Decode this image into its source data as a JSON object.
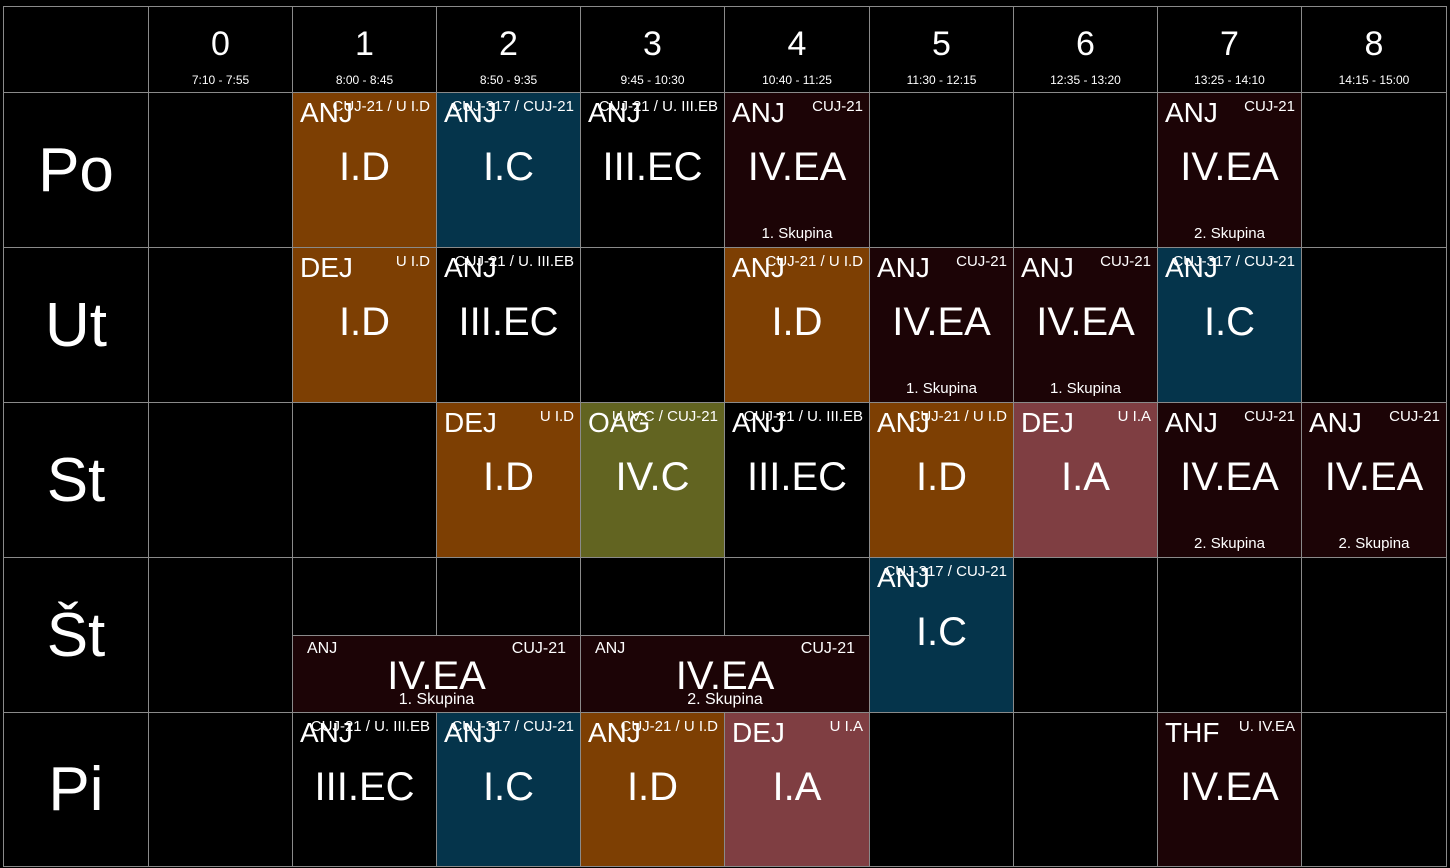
{
  "colors": {
    "background": "#000000",
    "grid_line": "#8a8a8a",
    "class_I.D": "#7d3f03",
    "class_I.C": "#05344b",
    "class_III.EC": "#000000",
    "class_IV.EA": "#1c0406",
    "class_IV.C": "#626421",
    "class_I.A": "#7f3e42"
  },
  "periods": [
    {
      "num": "0",
      "time": "7:10 - 7:55"
    },
    {
      "num": "1",
      "time": "8:00 - 8:45"
    },
    {
      "num": "2",
      "time": "8:50 - 9:35"
    },
    {
      "num": "3",
      "time": "9:45 - 10:30"
    },
    {
      "num": "4",
      "time": "10:40 - 11:25"
    },
    {
      "num": "5",
      "time": "11:30 - 12:15"
    },
    {
      "num": "6",
      "time": "12:35 - 13:20"
    },
    {
      "num": "7",
      "time": "13:25 - 14:10"
    },
    {
      "num": "8",
      "time": "14:15 - 15:00"
    }
  ],
  "days": [
    "Po",
    "Ut",
    "St",
    "Št",
    "Pi"
  ],
  "lessons": [
    {
      "day": 0,
      "period": 1,
      "subject": "ANJ",
      "room": "CUJ-21 / U I.D",
      "class": "I.D",
      "group": ""
    },
    {
      "day": 0,
      "period": 2,
      "subject": "ANJ",
      "room": "CUJ-317 / CUJ-21",
      "class": "I.C",
      "group": ""
    },
    {
      "day": 0,
      "period": 3,
      "subject": "ANJ",
      "room": "CUJ-21 / U. III.EB",
      "class": "III.EC",
      "group": ""
    },
    {
      "day": 0,
      "period": 4,
      "subject": "ANJ",
      "room": "CUJ-21",
      "class": "IV.EA",
      "group": "1. Skupina"
    },
    {
      "day": 0,
      "period": 7,
      "subject": "ANJ",
      "room": "CUJ-21",
      "class": "IV.EA",
      "group": "2. Skupina"
    },
    {
      "day": 1,
      "period": 1,
      "subject": "DEJ",
      "room": "U I.D",
      "class": "I.D",
      "group": ""
    },
    {
      "day": 1,
      "period": 2,
      "subject": "ANJ",
      "room": "CUJ-21 / U. III.EB",
      "class": "III.EC",
      "group": ""
    },
    {
      "day": 1,
      "period": 4,
      "subject": "ANJ",
      "room": "CUJ-21 / U I.D",
      "class": "I.D",
      "group": ""
    },
    {
      "day": 1,
      "period": 5,
      "subject": "ANJ",
      "room": "CUJ-21",
      "class": "IV.EA",
      "group": "1. Skupina"
    },
    {
      "day": 1,
      "period": 6,
      "subject": "ANJ",
      "room": "CUJ-21",
      "class": "IV.EA",
      "group": "1. Skupina"
    },
    {
      "day": 1,
      "period": 7,
      "subject": "ANJ",
      "room": "CUJ-317 / CUJ-21",
      "class": "I.C",
      "group": ""
    },
    {
      "day": 2,
      "period": 2,
      "subject": "DEJ",
      "room": "U I.D",
      "class": "I.D",
      "group": ""
    },
    {
      "day": 2,
      "period": 3,
      "subject": "OAG",
      "room": "U IV.C / CUJ-21",
      "class": "IV.C",
      "group": ""
    },
    {
      "day": 2,
      "period": 4,
      "subject": "ANJ",
      "room": "CUJ-21 / U. III.EB",
      "class": "III.EC",
      "group": ""
    },
    {
      "day": 2,
      "period": 5,
      "subject": "ANJ",
      "room": "CUJ-21 / U I.D",
      "class": "I.D",
      "group": ""
    },
    {
      "day": 2,
      "period": 6,
      "subject": "DEJ",
      "room": "U I.A",
      "class": "I.A",
      "group": ""
    },
    {
      "day": 2,
      "period": 7,
      "subject": "ANJ",
      "room": "CUJ-21",
      "class": "IV.EA",
      "group": "2. Skupina"
    },
    {
      "day": 2,
      "period": 8,
      "subject": "ANJ",
      "room": "CUJ-21",
      "class": "IV.EA",
      "group": "2. Skupina"
    },
    {
      "day": 3,
      "period": 1,
      "span": 2,
      "half": true,
      "subject": "ANJ",
      "room": "CUJ-21",
      "class": "IV.EA",
      "group": "1. Skupina"
    },
    {
      "day": 3,
      "period": 3,
      "span": 2,
      "half": true,
      "subject": "ANJ",
      "room": "CUJ-21",
      "class": "IV.EA",
      "group": "2. Skupina"
    },
    {
      "day": 3,
      "period": 5,
      "subject": "ANJ",
      "room": "CUJ-317 / CUJ-21",
      "class": "I.C",
      "group": ""
    },
    {
      "day": 4,
      "period": 1,
      "subject": "ANJ",
      "room": "CUJ-21 / U. III.EB",
      "class": "III.EC",
      "group": ""
    },
    {
      "day": 4,
      "period": 2,
      "subject": "ANJ",
      "room": "CUJ-317 / CUJ-21",
      "class": "I.C",
      "group": ""
    },
    {
      "day": 4,
      "period": 3,
      "subject": "ANJ",
      "room": "CUJ-21 / U I.D",
      "class": "I.D",
      "group": ""
    },
    {
      "day": 4,
      "period": 4,
      "subject": "DEJ",
      "room": "U I.A",
      "class": "I.A",
      "group": ""
    },
    {
      "day": 4,
      "period": 7,
      "subject": "THF",
      "room": "U. IV.EA",
      "class": "IV.EA",
      "group": ""
    }
  ]
}
